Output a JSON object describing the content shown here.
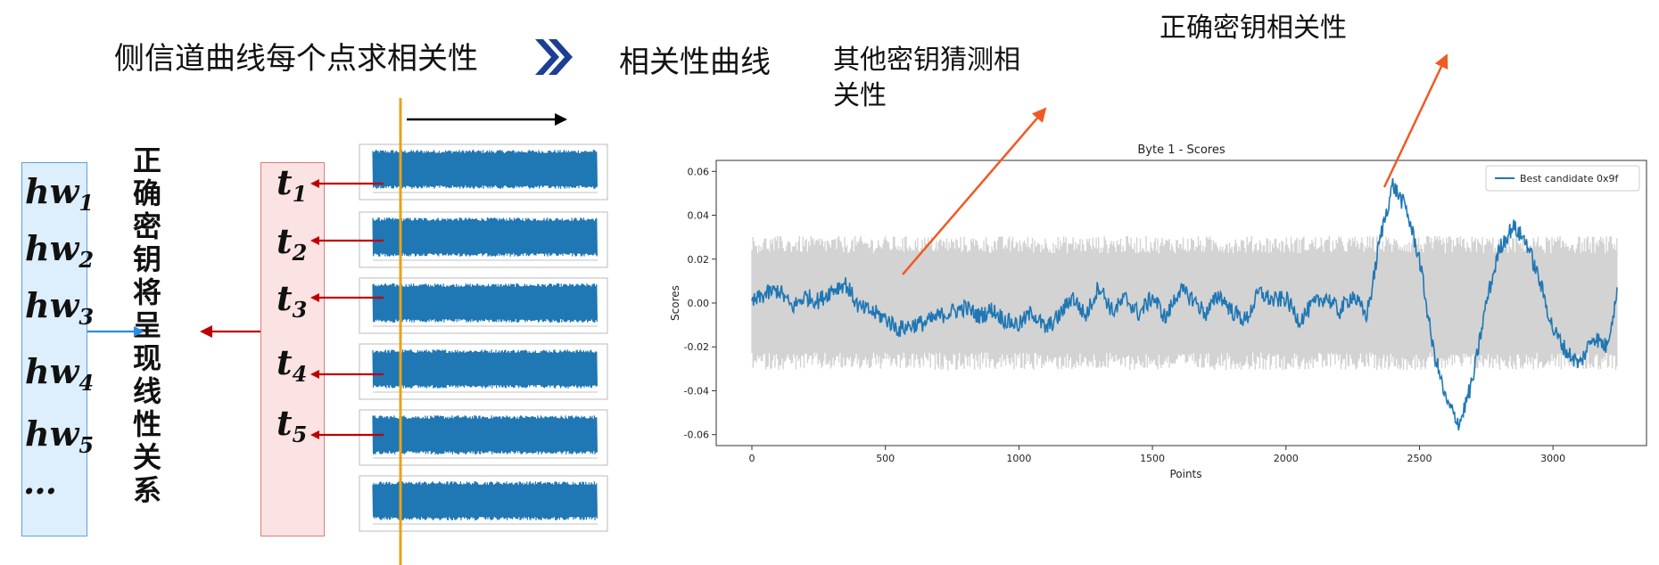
{
  "headings": {
    "left": "侧信道曲线每个点求相关性",
    "right": "相关性曲线"
  },
  "annotations": {
    "correct_key_line1": "正确密钥相关性",
    "other_keys_line1": "其他密钥猜测相",
    "other_keys_line2": "关性"
  },
  "hw_labels": [
    {
      "base": "hw",
      "sub": "1"
    },
    {
      "base": "hw",
      "sub": "2"
    },
    {
      "base": "hw",
      "sub": "3"
    },
    {
      "base": "hw",
      "sub": "4"
    },
    {
      "base": "hw",
      "sub": "5"
    }
  ],
  "hw_ellipsis": "…",
  "t_labels": [
    {
      "base": "t",
      "sub": "1"
    },
    {
      "base": "t",
      "sub": "2"
    },
    {
      "base": "t",
      "sub": "3"
    },
    {
      "base": "t",
      "sub": "4"
    },
    {
      "base": "t",
      "sub": "5"
    }
  ],
  "vertical_text": "正确密钥将呈现线性关系",
  "colors": {
    "trace_blue": "#1f77b4",
    "gray_band": "#d3d3d3",
    "orange_line": "#e8a317",
    "red_arrow": "#c00000",
    "blue_arrow": "#2f8ae0",
    "annotation_arrow": "#f05a23",
    "chevron": "#1c3f94"
  },
  "icons": {
    "chevron": "double-chevron-right-icon"
  },
  "chart_data": {
    "type": "line",
    "title": "Byte 1 - Scores",
    "xlabel": "Points",
    "ylabel": "Scores",
    "xlim": [
      0,
      3250
    ],
    "ylim": [
      -0.065,
      0.065
    ],
    "xticks": [
      0,
      500,
      1000,
      1500,
      2000,
      2500,
      3000
    ],
    "yticks": [
      0.06,
      0.04,
      0.02,
      0.0,
      -0.02,
      -0.04,
      -0.06
    ],
    "ytick_labels": [
      "0.06",
      "0.04",
      "0.02",
      "0.00",
      "-0.02",
      "-0.04",
      "-0.06"
    ],
    "legend": {
      "position": "top-right",
      "label": "Best candidate 0x9f"
    },
    "grid": false,
    "other_keys_band": {
      "upper": 0.025,
      "lower": -0.025
    },
    "series": [
      {
        "name": "Best candidate 0x9f",
        "x": [
          0,
          50,
          100,
          150,
          200,
          250,
          300,
          350,
          400,
          450,
          500,
          550,
          600,
          650,
          700,
          750,
          800,
          850,
          900,
          950,
          1000,
          1050,
          1100,
          1150,
          1200,
          1250,
          1300,
          1350,
          1400,
          1450,
          1500,
          1550,
          1600,
          1650,
          1700,
          1750,
          1800,
          1850,
          1900,
          1950,
          2000,
          2050,
          2100,
          2150,
          2200,
          2250,
          2300,
          2320,
          2350,
          2400,
          2450,
          2500,
          2550,
          2600,
          2650,
          2700,
          2750,
          2800,
          2850,
          2900,
          2950,
          3000,
          3050,
          3100,
          3150,
          3200,
          3240
        ],
        "y": [
          0.0,
          0.004,
          0.006,
          -0.002,
          0.003,
          0.001,
          0.006,
          0.009,
          -0.002,
          -0.004,
          -0.007,
          -0.012,
          -0.01,
          -0.009,
          -0.006,
          -0.004,
          -0.002,
          -0.006,
          -0.003,
          -0.008,
          -0.01,
          -0.004,
          -0.012,
          -0.006,
          0.003,
          -0.006,
          0.008,
          -0.004,
          0.002,
          -0.005,
          0.003,
          -0.007,
          0.006,
          0.002,
          -0.005,
          0.004,
          -0.004,
          -0.008,
          0.005,
          0.001,
          0.002,
          -0.008,
          -0.001,
          0.003,
          -0.004,
          0.004,
          -0.006,
          0.005,
          0.028,
          0.054,
          0.043,
          0.02,
          -0.02,
          -0.045,
          -0.055,
          -0.035,
          0.0,
          0.025,
          0.035,
          0.028,
          0.01,
          -0.012,
          -0.022,
          -0.028,
          -0.015,
          -0.02,
          0.004
        ]
      }
    ]
  }
}
